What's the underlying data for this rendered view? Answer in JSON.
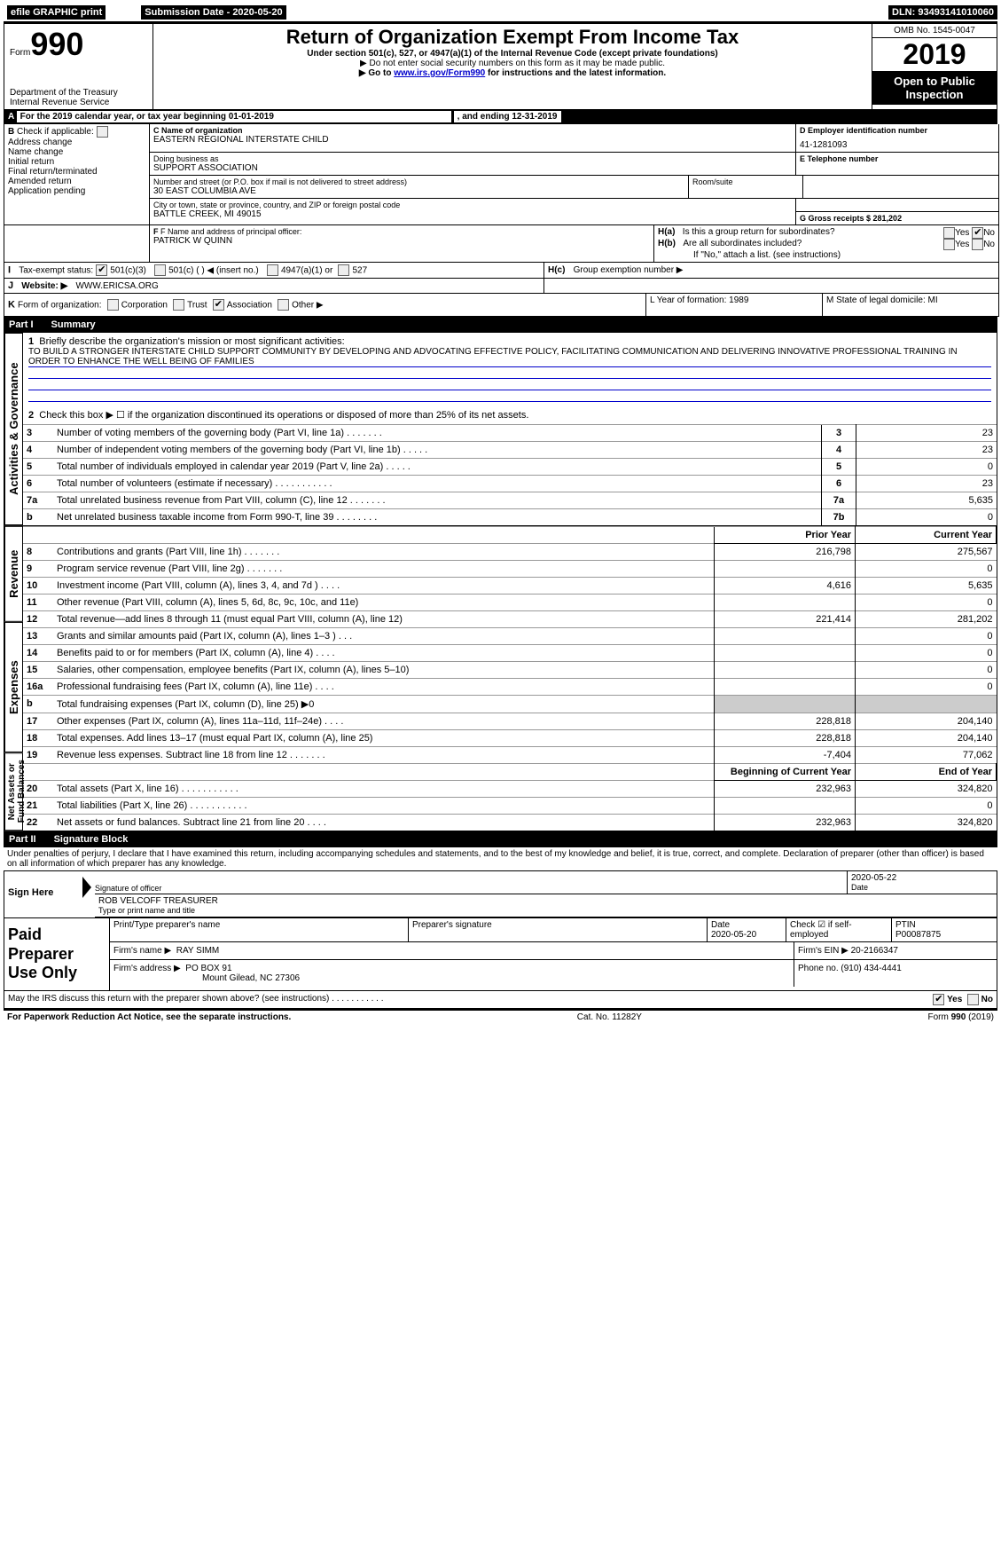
{
  "top": {
    "efile": "efile GRAPHIC print",
    "sub_label": "Submission Date - 2020-05-20",
    "dln": "DLN: 93493141010060"
  },
  "header": {
    "form_prefix": "Form",
    "form_num": "990",
    "dept": "Department of the Treasury",
    "irs": "Internal Revenue Service",
    "title": "Return of Organization Exempt From Income Tax",
    "sub1": "Under section 501(c), 527, or 4947(a)(1) of the Internal Revenue Code (except private foundations)",
    "sub2": "▶ Do not enter social security numbers on this form as it may be made public.",
    "sub3_pre": "▶ Go to ",
    "sub3_link": "www.irs.gov/Form990",
    "sub3_post": " for instructions and the latest information.",
    "omb": "OMB No. 1545-0047",
    "year": "2019",
    "open": "Open to Public Inspection"
  },
  "period": {
    "line_a": "For the 2019 calendar year, or tax year beginning 01-01-2019",
    "line_a2": ", and ending 12-31-2019"
  },
  "boxB": {
    "label": "Check if applicable:",
    "opts": [
      "Address change",
      "Name change",
      "Initial return",
      "Final return/terminated",
      "Amended return",
      "Application pending"
    ]
  },
  "boxC": {
    "label": "C Name of organization",
    "name": "EASTERN REGIONAL INTERSTATE CHILD",
    "dba_label": "Doing business as",
    "dba": "SUPPORT ASSOCIATION",
    "addr_label": "Number and street (or P.O. box if mail is not delivered to street address)",
    "addr": "30 EAST COLUMBIA AVE",
    "room": "Room/suite",
    "city_label": "City or town, state or province, country, and ZIP or foreign postal code",
    "city": "BATTLE CREEK, MI  49015"
  },
  "boxD": {
    "label": "D Employer identification number",
    "value": "41-1281093"
  },
  "boxE": {
    "label": "E Telephone number",
    "value": ""
  },
  "boxG": {
    "label": "G Gross receipts $ 281,202"
  },
  "boxF": {
    "label": "F  Name and address of principal officer:",
    "value": "PATRICK W QUINN"
  },
  "boxH": {
    "aQ": "Is this a group return for subordinates?",
    "bQ": "Are all subordinates included?",
    "ifno": "If \"No,\" attach a list. (see instructions)",
    "cQ": "Group exemption number ▶",
    "yes": "Yes",
    "no": "No"
  },
  "rowI": {
    "label": "Tax-exempt status:",
    "o1": "501(c)(3)",
    "o2": "501(c) (   ) ◀ (insert no.)",
    "o3": "4947(a)(1) or",
    "o4": "527"
  },
  "rowJ": {
    "label": "Website: ▶",
    "value": "WWW.ERICSA.ORG"
  },
  "rowK": {
    "label": "Form of organization:",
    "o1": "Corporation",
    "o2": "Trust",
    "o3": "Association",
    "o4": "Other ▶"
  },
  "rowL": {
    "label": "L Year of formation: 1989"
  },
  "rowM": {
    "label": "M State of legal domicile: MI"
  },
  "part1": {
    "title": "Part I",
    "sub": "Summary"
  },
  "summary": {
    "q1": "Briefly describe the organization's mission or most significant activities:",
    "mission": "TO BUILD A STRONGER INTERSTATE CHILD SUPPORT COMMUNITY BY DEVELOPING AND ADVOCATING EFFECTIVE POLICY, FACILITATING COMMUNICATION AND DELIVERING INNOVATIVE PROFESSIONAL TRAINING IN ORDER TO ENHANCE THE WELL BEING OF FAMILIES",
    "q2": "Check this box ▶ ☐ if the organization discontinued its operations or disposed of more than 25% of its net assets.",
    "lines": [
      {
        "n": "3",
        "t": "Number of voting members of the governing body (Part VI, line 1a)   .    .    .    .    .    .    .",
        "b": "3",
        "v": "23"
      },
      {
        "n": "4",
        "t": "Number of independent voting members of the governing body (Part VI, line 1b)  .    .    .    .    .",
        "b": "4",
        "v": "23"
      },
      {
        "n": "5",
        "t": "Total number of individuals employed in calendar year 2019 (Part V, line 2a)   .    .    .    .    .",
        "b": "5",
        "v": "0"
      },
      {
        "n": "6",
        "t": "Total number of volunteers (estimate if necessary)   .    .    .    .    .    .    .    .    .    .    .",
        "b": "6",
        "v": "23"
      },
      {
        "n": "7a",
        "t": "Total unrelated business revenue from Part VIII, column (C), line 12   .    .    .    .    .    .    .",
        "b": "7a",
        "v": "5,635"
      },
      {
        "n": "b",
        "t": "Net unrelated business taxable income from Form 990-T, line 39   .    .    .    .    .    .    .    .",
        "b": "7b",
        "v": "0"
      }
    ]
  },
  "rev_exp": {
    "h_prior": "Prior Year",
    "h_curr": "Current Year",
    "rows": [
      {
        "g": "rev",
        "n": "8",
        "t": "Contributions and grants (Part VIII, line 1h)   .    .    .    .    .    .    .",
        "p": "216,798",
        "c": "275,567"
      },
      {
        "g": "rev",
        "n": "9",
        "t": "Program service revenue (Part VIII, line 2g)   .    .    .    .    .    .    .",
        "p": "",
        "c": "0"
      },
      {
        "g": "rev",
        "n": "10",
        "t": "Investment income (Part VIII, column (A), lines 3, 4, and 7d )   .    .    .    .",
        "p": "4,616",
        "c": "5,635"
      },
      {
        "g": "rev",
        "n": "11",
        "t": "Other revenue (Part VIII, column (A), lines 5, 6d, 8c, 9c, 10c, and 11e)",
        "p": "",
        "c": "0"
      },
      {
        "g": "rev",
        "n": "12",
        "t": "Total revenue—add lines 8 through 11 (must equal Part VIII, column (A), line 12)",
        "p": "221,414",
        "c": "281,202"
      },
      {
        "g": "exp",
        "n": "13",
        "t": "Grants and similar amounts paid (Part IX, column (A), lines 1–3 )  .    .    .",
        "p": "",
        "c": "0"
      },
      {
        "g": "exp",
        "n": "14",
        "t": "Benefits paid to or for members (Part IX, column (A), line 4)  .    .    .    .",
        "p": "",
        "c": "0"
      },
      {
        "g": "exp",
        "n": "15",
        "t": "Salaries, other compensation, employee benefits (Part IX, column (A), lines 5–10)",
        "p": "",
        "c": "0"
      },
      {
        "g": "exp",
        "n": "16a",
        "t": "Professional fundraising fees (Part IX, column (A), line 11e)   .    .    .    .",
        "p": "",
        "c": "0"
      },
      {
        "g": "exp",
        "n": "b",
        "t": "Total fundraising expenses (Part IX, column (D), line 25) ▶0",
        "p": "shade",
        "c": "shade"
      },
      {
        "g": "exp",
        "n": "17",
        "t": "Other expenses (Part IX, column (A), lines 11a–11d, 11f–24e)  .    .    .    .",
        "p": "228,818",
        "c": "204,140"
      },
      {
        "g": "exp",
        "n": "18",
        "t": "Total expenses. Add lines 13–17 (must equal Part IX, column (A), line 25)",
        "p": "228,818",
        "c": "204,140"
      },
      {
        "g": "exp",
        "n": "19",
        "t": "Revenue less expenses. Subtract line 18 from line 12 .    .    .    .    .    .    .",
        "p": "-7,404",
        "c": "77,062"
      }
    ]
  },
  "net": {
    "h_beg": "Beginning of Current Year",
    "h_end": "End of Year",
    "rows": [
      {
        "n": "20",
        "t": "Total assets (Part X, line 16)  .    .    .    .    .    .    .    .    .    .    .",
        "p": "232,963",
        "c": "324,820"
      },
      {
        "n": "21",
        "t": "Total liabilities (Part X, line 26) .    .    .    .    .    .    .    .    .    .    .",
        "p": "",
        "c": "0"
      },
      {
        "n": "22",
        "t": "Net assets or fund balances. Subtract line 21 from line 20  .    .    .    .",
        "p": "232,963",
        "c": "324,820"
      }
    ]
  },
  "part2": {
    "title": "Part II",
    "sub": "Signature Block"
  },
  "sig": {
    "decl": "Under penalties of perjury, I declare that I have examined this return, including accompanying schedules and statements, and to the best of my knowledge and belief, it is true, correct, and complete. Declaration of preparer (other than officer) is based on all information of which preparer has any knowledge.",
    "sign_here": "Sign Here",
    "sig_officer": "Signature of officer",
    "date1": "2020-05-22",
    "date_l": "Date",
    "name": "ROB VELCOFF  TREASURER",
    "name_l": "Type or print name and title"
  },
  "paid": {
    "title": "Paid Preparer Use Only",
    "h1": "Print/Type preparer's name",
    "h2": "Preparer's signature",
    "h3": "Date",
    "date": "2020-05-20",
    "h4": "Check ☑ if self-employed",
    "h5": "PTIN",
    "ptin": "P00087875",
    "firm_l": "Firm's name    ▶",
    "firm": "RAY SIMM",
    "firm_ein_l": "Firm's EIN ▶",
    "firm_ein": "20-2166347",
    "addr_l": "Firm's address ▶",
    "addr1": "PO BOX 91",
    "addr2": "Mount Gilead, NC  27306",
    "phone_l": "Phone no.",
    "phone": "(910) 434-4441"
  },
  "footer": {
    "discuss": "May the IRS discuss this return with the preparer shown above? (see instructions)   .    .    .    .    .    .    .    .    .    .    .",
    "yes": "Yes",
    "no": "No",
    "pra": "For Paperwork Reduction Act Notice, see the separate instructions.",
    "cat": "Cat. No. 11282Y",
    "form": "Form 990 (2019)"
  },
  "sides": {
    "ag": "Activities & Governance",
    "rev": "Revenue",
    "exp": "Expenses",
    "net": "Net Assets or Fund Balances"
  }
}
